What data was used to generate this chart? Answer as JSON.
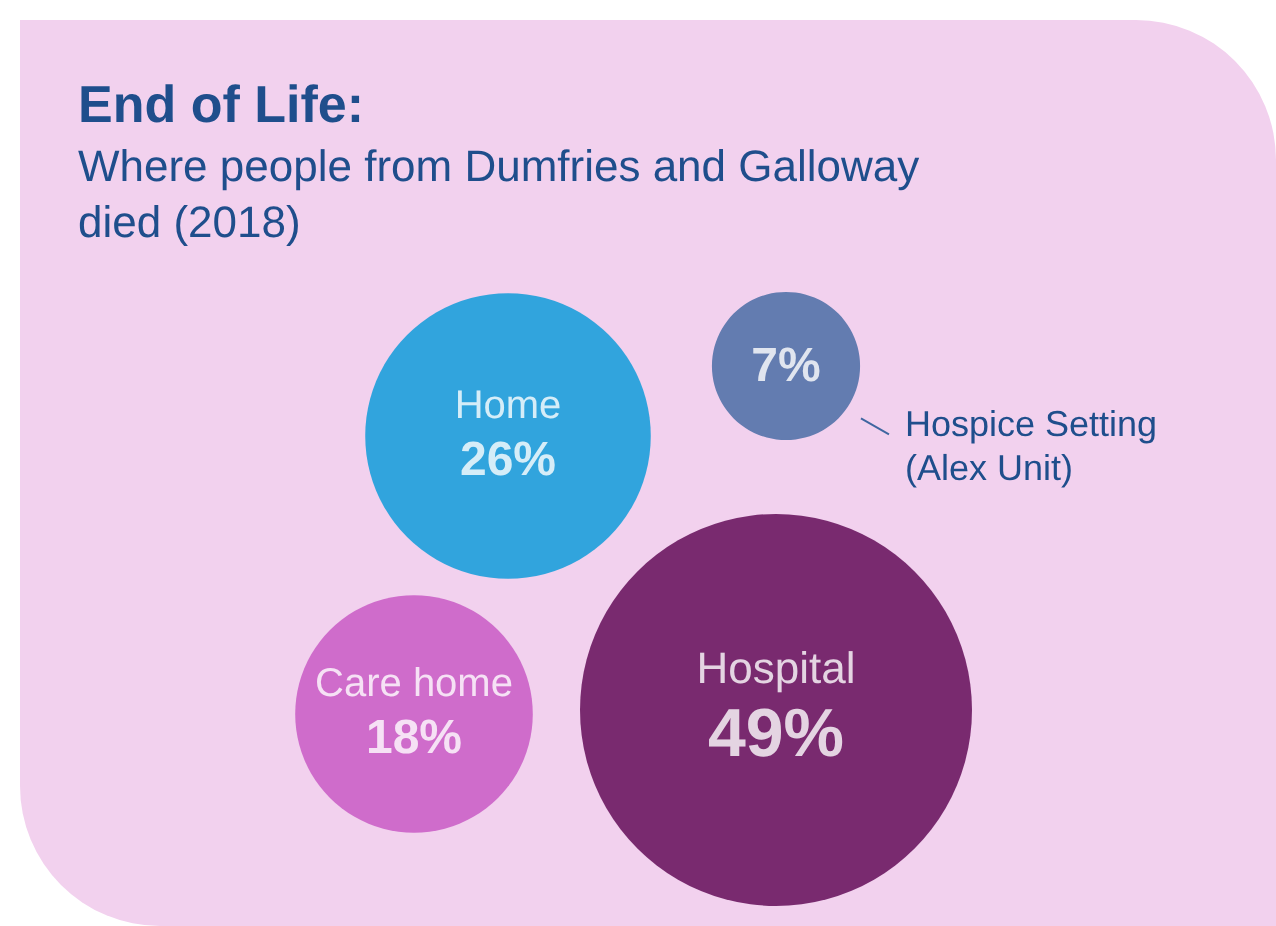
{
  "chart_data": {
    "type": "other",
    "title": "End of Life:",
    "subtitle": "Where people from Dumfries and Galloway died (2018)",
    "categories": [
      "Home",
      "Hospice Setting (Alex Unit)",
      "Care home",
      "Hospital"
    ],
    "values": [
      26,
      7,
      18,
      49
    ],
    "value_labels": [
      "26%",
      "7%",
      "18%",
      "49%"
    ],
    "colors": [
      "#0099d8",
      "#3f66a0",
      "#c653c2",
      "#5a004f"
    ]
  }
}
